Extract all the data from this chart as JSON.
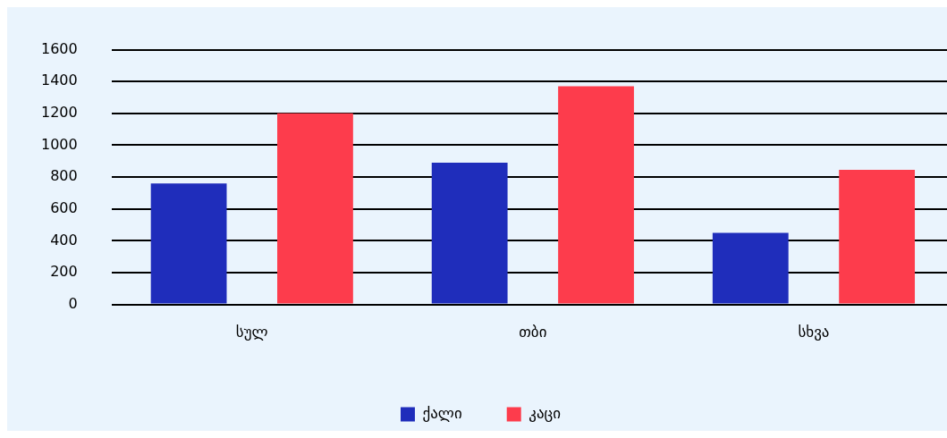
{
  "chart_data": {
    "type": "bar",
    "categories": [
      "სულ",
      "თბი",
      "სხვა"
    ],
    "series": [
      {
        "name": "ქალი",
        "color": "#1f2dbb",
        "values": [
          760,
          890,
          450
        ]
      },
      {
        "name": "კაცი",
        "color": "#fd3c4c",
        "values": [
          1200,
          1370,
          845
        ]
      }
    ],
    "ylim": [
      0,
      1600
    ],
    "yticks": [
      0,
      200,
      400,
      600,
      800,
      1000,
      1200,
      1400,
      1600
    ],
    "grid": "y",
    "legend": "bottom"
  }
}
